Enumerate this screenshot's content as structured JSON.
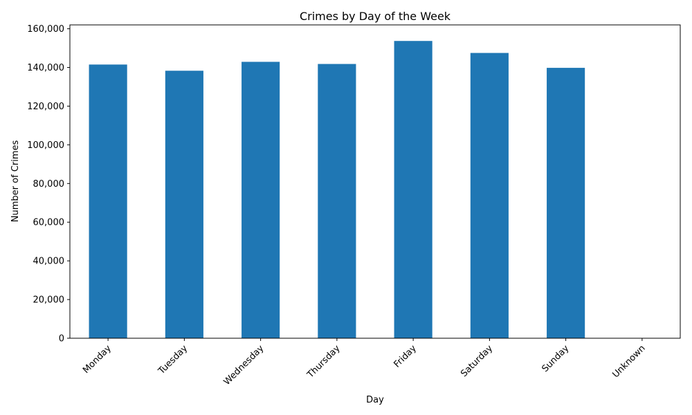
{
  "chart_data": {
    "type": "bar",
    "title": "Crimes by Day of the Week",
    "xlabel": "Day",
    "ylabel": "Number of Crimes",
    "categories": [
      "Monday",
      "Tuesday",
      "Wednesday",
      "Thursday",
      "Friday",
      "Saturday",
      "Sunday",
      "Unknown"
    ],
    "values": [
      141500,
      138300,
      142900,
      141800,
      153700,
      147500,
      139800,
      0
    ],
    "ylim": [
      0,
      162000
    ],
    "yticks": [
      0,
      20000,
      40000,
      60000,
      80000,
      100000,
      120000,
      140000,
      160000
    ],
    "ytick_labels": [
      "0",
      "20,000",
      "40,000",
      "60,000",
      "80,000",
      "100,000",
      "120,000",
      "140,000",
      "160,000"
    ],
    "bar_color": "#1f77b4",
    "grid": false,
    "xtick_rotation_deg": 45
  }
}
